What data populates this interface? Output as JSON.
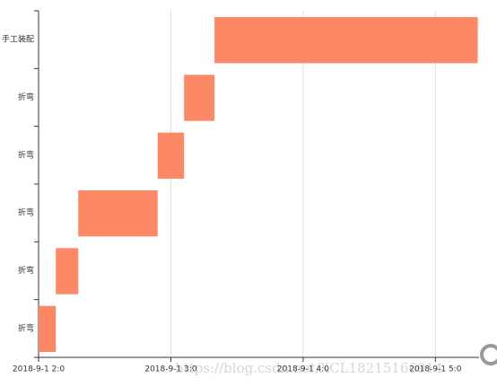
{
  "chart_data": {
    "type": "gantt",
    "categories": [
      "手工装配",
      "折弯",
      "折弯",
      "折弯",
      "折弯",
      "折弯"
    ],
    "start": [
      3.33,
      3.1,
      2.9,
      2.3,
      2.13,
      2.0
    ],
    "end": [
      5.32,
      3.33,
      3.1,
      2.9,
      2.3,
      2.13
    ],
    "color": "#fc8865",
    "xlim": [
      2,
      5.33
    ],
    "xticks": [
      {
        "value": 2,
        "label": "2018-9-1 2:0"
      },
      {
        "value": 3,
        "label": "2018-9-1 3:0"
      },
      {
        "value": 4,
        "label": "2018-9-1 4:0"
      },
      {
        "value": 5,
        "label": "2018-9-1 5:0"
      }
    ],
    "grid": true
  },
  "watermark": "https://blog.csdn.net/XCL18215166914"
}
